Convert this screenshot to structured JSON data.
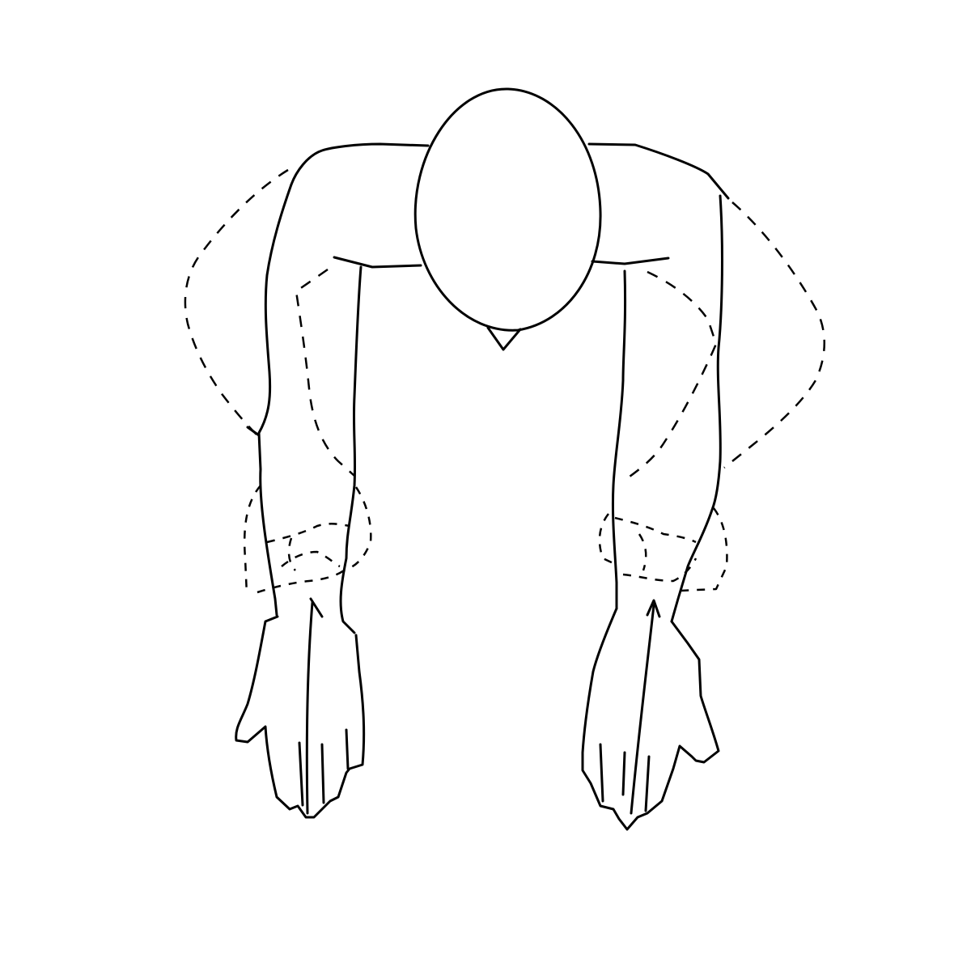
{
  "colors": {
    "background": "#ffffff",
    "line": "#000000"
  },
  "figure": {
    "subject": "person-bent-forward-arms-hanging",
    "line_styles": [
      "solid",
      "dashed"
    ]
  }
}
